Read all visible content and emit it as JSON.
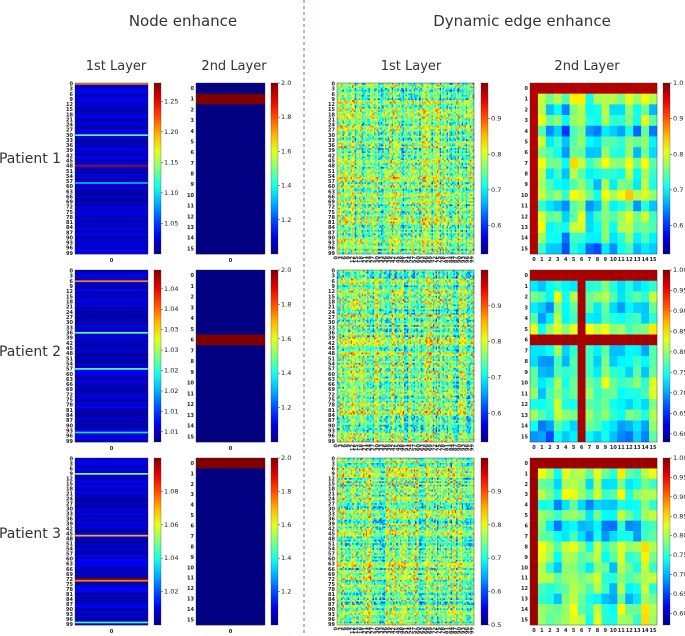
{
  "section_titles": {
    "node": "Node enhance",
    "edge": "Dynamic edge enhance"
  },
  "column_titles": {
    "node_l1": "1st Layer",
    "node_l2": "2nd Layer",
    "edge_l1": "1st Layer",
    "edge_l2": "2nd Layer"
  },
  "row_labels": [
    "Patient 1",
    "Patient 2",
    "Patient 3"
  ],
  "colors": {
    "divider": "#4a79c4",
    "low": "#1f2f8f",
    "high": "#7f0000"
  },
  "chart_data": [
    {
      "id": "p1-node-l1",
      "type": "heatmap",
      "rows": 100,
      "cols": 1,
      "x_tick": "0",
      "colorbar": {
        "min": 1.0,
        "max": 1.28,
        "ticks": [
          "1.05",
          "1.10",
          "1.15",
          "1.20",
          "1.25"
        ]
      },
      "highlights": [
        {
          "row": 0,
          "v": 0.75
        },
        {
          "row": 30,
          "v": 0.45
        },
        {
          "row": 48,
          "v": 0.95
        },
        {
          "row": 58,
          "v": 0.3
        }
      ]
    },
    {
      "id": "p1-node-l2",
      "type": "heatmap",
      "rows": 16,
      "cols": 1,
      "x_tick": "0",
      "colorbar": {
        "min": 1.0,
        "max": 2.0,
        "ticks": [
          "1.2",
          "1.4",
          "1.6",
          "1.8",
          "2.0"
        ]
      },
      "highlights": [
        {
          "row": 1,
          "v": 1.0
        }
      ]
    },
    {
      "id": "p1-edge-l1",
      "type": "heatmap",
      "rows": 100,
      "cols": 100,
      "colorbar": {
        "min": 0.52,
        "max": 1.0,
        "ticks": [
          "0.6",
          "0.7",
          "0.8",
          "0.9"
        ]
      }
    },
    {
      "id": "p1-edge-l2",
      "type": "heatmap",
      "rows": 16,
      "cols": 16,
      "colorbar": {
        "min": 0.52,
        "max": 1.0,
        "ticks": [
          "0.6",
          "0.7",
          "0.8",
          "0.9",
          "1.0"
        ]
      }
    },
    {
      "id": "p2-node-l1",
      "type": "heatmap",
      "rows": 100,
      "cols": 1,
      "x_tick": "0",
      "colorbar": {
        "min": 1.0,
        "max": 1.045,
        "ticks": [
          "1.01",
          "1.01",
          "1.02",
          "1.02",
          "1.03",
          "1.03",
          "1.04",
          "1.04"
        ]
      },
      "highlights": [
        {
          "row": 6,
          "v": 0.75
        },
        {
          "row": 36,
          "v": 0.45
        },
        {
          "row": 57,
          "v": 0.45
        },
        {
          "row": 94,
          "v": 0.35
        }
      ]
    },
    {
      "id": "p2-node-l2",
      "type": "heatmap",
      "rows": 16,
      "cols": 1,
      "x_tick": "0",
      "colorbar": {
        "min": 1.0,
        "max": 2.0,
        "ticks": [
          "1.2",
          "1.4",
          "1.6",
          "1.8",
          "2.0"
        ]
      },
      "highlights": [
        {
          "row": 6,
          "v": 1.0
        }
      ]
    },
    {
      "id": "p2-edge-l1",
      "type": "heatmap",
      "rows": 100,
      "cols": 100,
      "colorbar": {
        "min": 0.52,
        "max": 1.0,
        "ticks": [
          "0.6",
          "0.7",
          "0.8",
          "0.9"
        ]
      }
    },
    {
      "id": "p2-edge-l2",
      "type": "heatmap",
      "rows": 16,
      "cols": 16,
      "colorbar": {
        "min": 0.58,
        "max": 1.0,
        "ticks": [
          "0.60",
          "0.65",
          "0.70",
          "0.75",
          "0.80",
          "0.85",
          "0.90",
          "0.95",
          "1.00"
        ]
      }
    },
    {
      "id": "p3-node-l1",
      "type": "heatmap",
      "rows": 100,
      "cols": 1,
      "x_tick": "0",
      "colorbar": {
        "min": 1.0,
        "max": 1.1,
        "ticks": [
          "1.02",
          "1.04",
          "1.06",
          "1.08"
        ]
      },
      "highlights": [
        {
          "row": 9,
          "v": 0.5
        },
        {
          "row": 46,
          "v": 0.7
        },
        {
          "row": 72,
          "v": 1.0
        },
        {
          "row": 73,
          "v": 0.75
        },
        {
          "row": 98,
          "v": 0.45
        }
      ]
    },
    {
      "id": "p3-node-l2",
      "type": "heatmap",
      "rows": 16,
      "cols": 1,
      "x_tick": "0",
      "colorbar": {
        "min": 1.0,
        "max": 2.0,
        "ticks": [
          "1.2",
          "1.4",
          "1.6",
          "1.8",
          "2.0"
        ]
      },
      "highlights": [
        {
          "row": 0,
          "v": 1.0
        }
      ]
    },
    {
      "id": "p3-edge-l1",
      "type": "heatmap",
      "rows": 100,
      "cols": 100,
      "colorbar": {
        "min": 0.5,
        "max": 1.0,
        "ticks": [
          "0.5",
          "0.6",
          "0.7",
          "0.8",
          "0.9"
        ]
      }
    },
    {
      "id": "p3-edge-l2",
      "type": "heatmap",
      "rows": 16,
      "cols": 16,
      "colorbar": {
        "min": 0.57,
        "max": 1.0,
        "ticks": [
          "0.60",
          "0.65",
          "0.70",
          "0.75",
          "0.80",
          "0.85",
          "0.90",
          "0.95",
          "1.00"
        ]
      }
    }
  ]
}
